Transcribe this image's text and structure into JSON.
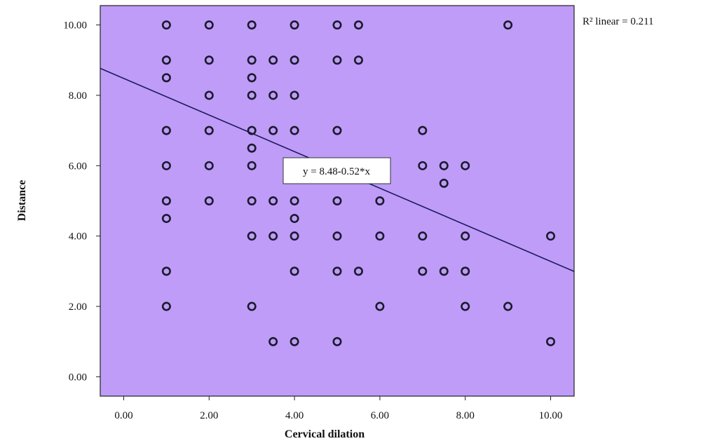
{
  "chart_data": {
    "type": "scatter",
    "xlabel": "Cervical dilation",
    "ylabel": "Distance",
    "xlim": [
      -0.55,
      10.55
    ],
    "ylim": [
      -0.55,
      10.55
    ],
    "x_ticks": [
      "0.00",
      "2.00",
      "4.00",
      "6.00",
      "8.00",
      "10.00"
    ],
    "y_ticks": [
      "0.00",
      "2.00",
      "4.00",
      "6.00",
      "8.00",
      "10.00"
    ],
    "background_color": "#bf9cf7",
    "marker_color": "#1a1a2e",
    "fit_line": {
      "intercept": 8.48,
      "slope": -0.52,
      "label": "y = 8.48-0.52*x"
    },
    "r2_label": "R² linear = 0.211",
    "points": [
      [
        1,
        10
      ],
      [
        2,
        10
      ],
      [
        3,
        10
      ],
      [
        4,
        10
      ],
      [
        5,
        10
      ],
      [
        5.5,
        10
      ],
      [
        9,
        10
      ],
      [
        1,
        9
      ],
      [
        2,
        9
      ],
      [
        3,
        9
      ],
      [
        3.5,
        9
      ],
      [
        4,
        9
      ],
      [
        5,
        9
      ],
      [
        5.5,
        9
      ],
      [
        1,
        8.5
      ],
      [
        3,
        8.5
      ],
      [
        2,
        8
      ],
      [
        3,
        8
      ],
      [
        3.5,
        8
      ],
      [
        4,
        8
      ],
      [
        1,
        7
      ],
      [
        2,
        7
      ],
      [
        3,
        7
      ],
      [
        3.5,
        7
      ],
      [
        4,
        7
      ],
      [
        5,
        7
      ],
      [
        7,
        7
      ],
      [
        3,
        6.5
      ],
      [
        1,
        6
      ],
      [
        2,
        6
      ],
      [
        3,
        6
      ],
      [
        7,
        6
      ],
      [
        7.5,
        6
      ],
      [
        8,
        6
      ],
      [
        7.5,
        5.5
      ],
      [
        1,
        5
      ],
      [
        2,
        5
      ],
      [
        3,
        5
      ],
      [
        3.5,
        5
      ],
      [
        4,
        5
      ],
      [
        5,
        5
      ],
      [
        6,
        5
      ],
      [
        1,
        4.5
      ],
      [
        4,
        4.5
      ],
      [
        3,
        4
      ],
      [
        3.5,
        4
      ],
      [
        4,
        4
      ],
      [
        5,
        4
      ],
      [
        6,
        4
      ],
      [
        7,
        4
      ],
      [
        8,
        4
      ],
      [
        10,
        4
      ],
      [
        1,
        3
      ],
      [
        4,
        3
      ],
      [
        5,
        3
      ],
      [
        5.5,
        3
      ],
      [
        7,
        3
      ],
      [
        7.5,
        3
      ],
      [
        8,
        3
      ],
      [
        1,
        2
      ],
      [
        3,
        2
      ],
      [
        6,
        2
      ],
      [
        8,
        2
      ],
      [
        9,
        2
      ],
      [
        3.5,
        1
      ],
      [
        4,
        1
      ],
      [
        5,
        1
      ],
      [
        10,
        1
      ]
    ]
  }
}
